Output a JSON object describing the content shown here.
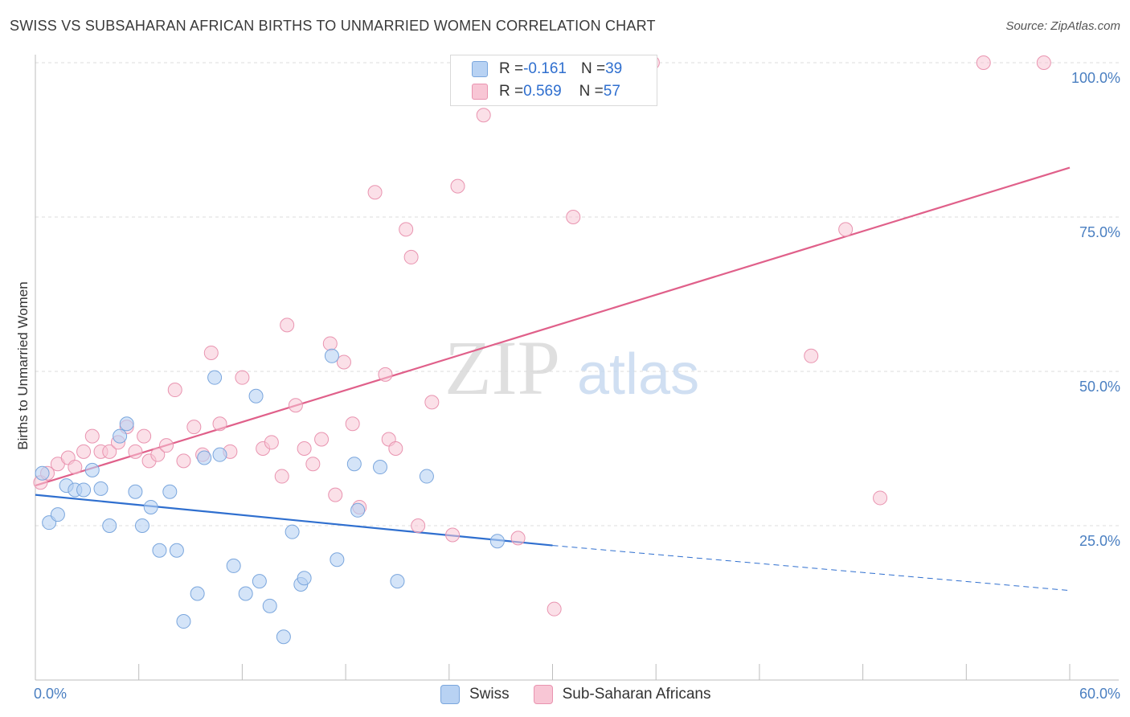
{
  "header": {
    "title": "SWISS VS SUBSAHARAN AFRICAN BIRTHS TO UNMARRIED WOMEN CORRELATION CHART",
    "source": "Source: ZipAtlas.com"
  },
  "legend": {
    "swiss": {
      "r_label": "R = ",
      "r_value": "-0.161",
      "n_label": "N = ",
      "n_value": "39"
    },
    "ssa": {
      "r_label": "R = ",
      "r_value": "0.569",
      "n_label": "N = ",
      "n_value": "57"
    }
  },
  "bottom_legend": {
    "swiss": "Swiss",
    "ssa": "Sub-Saharan Africans"
  },
  "watermark": {
    "zip": "ZIP",
    "atlas": "atlas"
  },
  "colors": {
    "swiss_fill": "#b8d2f3",
    "swiss_stroke": "#7aa6dd",
    "swiss_line": "#2f6fcf",
    "ssa_fill": "#f8c6d5",
    "ssa_stroke": "#e994b0",
    "ssa_line": "#e0608a",
    "tick": "#4a7fc1",
    "grid": "#dcdcdc"
  },
  "chart_data": {
    "type": "scatter",
    "title": "SWISS VS SUBSAHARAN AFRICAN BIRTHS TO UNMARRIED WOMEN CORRELATION CHART",
    "xlabel": "",
    "ylabel": "Births to Unmarried Women",
    "xlim": [
      0,
      60
    ],
    "ylim": [
      0,
      100
    ],
    "x_tick_labels": [
      "0.0%",
      "60.0%"
    ],
    "y_tick_labels": [
      "100.0%",
      "75.0%",
      "50.0%",
      "25.0%"
    ],
    "y_ticks": [
      100,
      75,
      50,
      25
    ],
    "grid": true,
    "series": [
      {
        "name": "Swiss",
        "points": [
          [
            0.4,
            33.5
          ],
          [
            0.8,
            25.5
          ],
          [
            1.3,
            26.8
          ],
          [
            1.8,
            31.5
          ],
          [
            2.3,
            30.8
          ],
          [
            2.8,
            30.8
          ],
          [
            3.3,
            34.0
          ],
          [
            3.8,
            31.0
          ],
          [
            4.3,
            25.0
          ],
          [
            4.9,
            39.5
          ],
          [
            5.3,
            41.5
          ],
          [
            5.8,
            30.5
          ],
          [
            6.2,
            25.0
          ],
          [
            6.7,
            28.0
          ],
          [
            7.2,
            21.0
          ],
          [
            7.8,
            30.5
          ],
          [
            8.2,
            21.0
          ],
          [
            8.6,
            9.5
          ],
          [
            9.4,
            14.0
          ],
          [
            9.8,
            36.0
          ],
          [
            10.4,
            49.0
          ],
          [
            10.7,
            36.5
          ],
          [
            11.5,
            18.5
          ],
          [
            12.2,
            14.0
          ],
          [
            12.8,
            46.0
          ],
          [
            13.0,
            16.0
          ],
          [
            13.6,
            12.0
          ],
          [
            14.4,
            7.0
          ],
          [
            14.9,
            24.0
          ],
          [
            15.4,
            15.5
          ],
          [
            15.6,
            16.5
          ],
          [
            17.2,
            52.5
          ],
          [
            17.5,
            19.5
          ],
          [
            18.5,
            35.0
          ],
          [
            18.7,
            27.5
          ],
          [
            20.0,
            34.5
          ],
          [
            21.0,
            16.0
          ],
          [
            22.7,
            33.0
          ],
          [
            26.8,
            22.5
          ]
        ],
        "trend": {
          "x0": 0,
          "y0": 30.0,
          "x1": 30,
          "y1": 21.8,
          "dash_x1": 60,
          "dash_y1": 14.5
        }
      },
      {
        "name": "Sub-Saharan Africans",
        "points": [
          [
            0.3,
            32.0
          ],
          [
            0.7,
            33.5
          ],
          [
            1.3,
            35.0
          ],
          [
            1.9,
            36.0
          ],
          [
            2.3,
            34.5
          ],
          [
            2.8,
            37.0
          ],
          [
            3.3,
            39.5
          ],
          [
            3.8,
            37.0
          ],
          [
            4.3,
            37.0
          ],
          [
            4.8,
            38.5
          ],
          [
            5.3,
            41.0
          ],
          [
            5.8,
            37.0
          ],
          [
            6.3,
            39.5
          ],
          [
            6.6,
            35.5
          ],
          [
            7.1,
            36.5
          ],
          [
            7.6,
            38.0
          ],
          [
            8.1,
            47.0
          ],
          [
            8.6,
            35.5
          ],
          [
            9.2,
            41.0
          ],
          [
            9.7,
            36.5
          ],
          [
            10.2,
            53.0
          ],
          [
            10.7,
            41.5
          ],
          [
            11.3,
            37.0
          ],
          [
            12.0,
            49.0
          ],
          [
            13.2,
            37.5
          ],
          [
            13.7,
            38.5
          ],
          [
            14.3,
            33.0
          ],
          [
            14.6,
            57.5
          ],
          [
            15.1,
            44.5
          ],
          [
            15.6,
            37.5
          ],
          [
            16.1,
            35.0
          ],
          [
            16.6,
            39.0
          ],
          [
            17.1,
            54.5
          ],
          [
            17.4,
            30.0
          ],
          [
            17.9,
            51.5
          ],
          [
            18.4,
            41.5
          ],
          [
            18.8,
            28.0
          ],
          [
            19.7,
            79.0
          ],
          [
            20.3,
            49.5
          ],
          [
            20.5,
            39.0
          ],
          [
            20.9,
            37.5
          ],
          [
            21.5,
            73.0
          ],
          [
            21.8,
            68.5
          ],
          [
            22.2,
            25.0
          ],
          [
            23.0,
            45.0
          ],
          [
            24.2,
            23.5
          ],
          [
            24.5,
            80.0
          ],
          [
            26.0,
            91.5
          ],
          [
            28.0,
            23.0
          ],
          [
            30.1,
            11.5
          ],
          [
            31.2,
            75.0
          ],
          [
            35.8,
            100.0
          ],
          [
            45.0,
            52.5
          ],
          [
            47.0,
            73.0
          ],
          [
            49.0,
            29.5
          ],
          [
            55.0,
            100.0
          ],
          [
            58.5,
            100.0
          ]
        ],
        "trend": {
          "x0": 0,
          "y0": 31.5,
          "x1": 60,
          "y1": 83.0
        }
      }
    ]
  }
}
